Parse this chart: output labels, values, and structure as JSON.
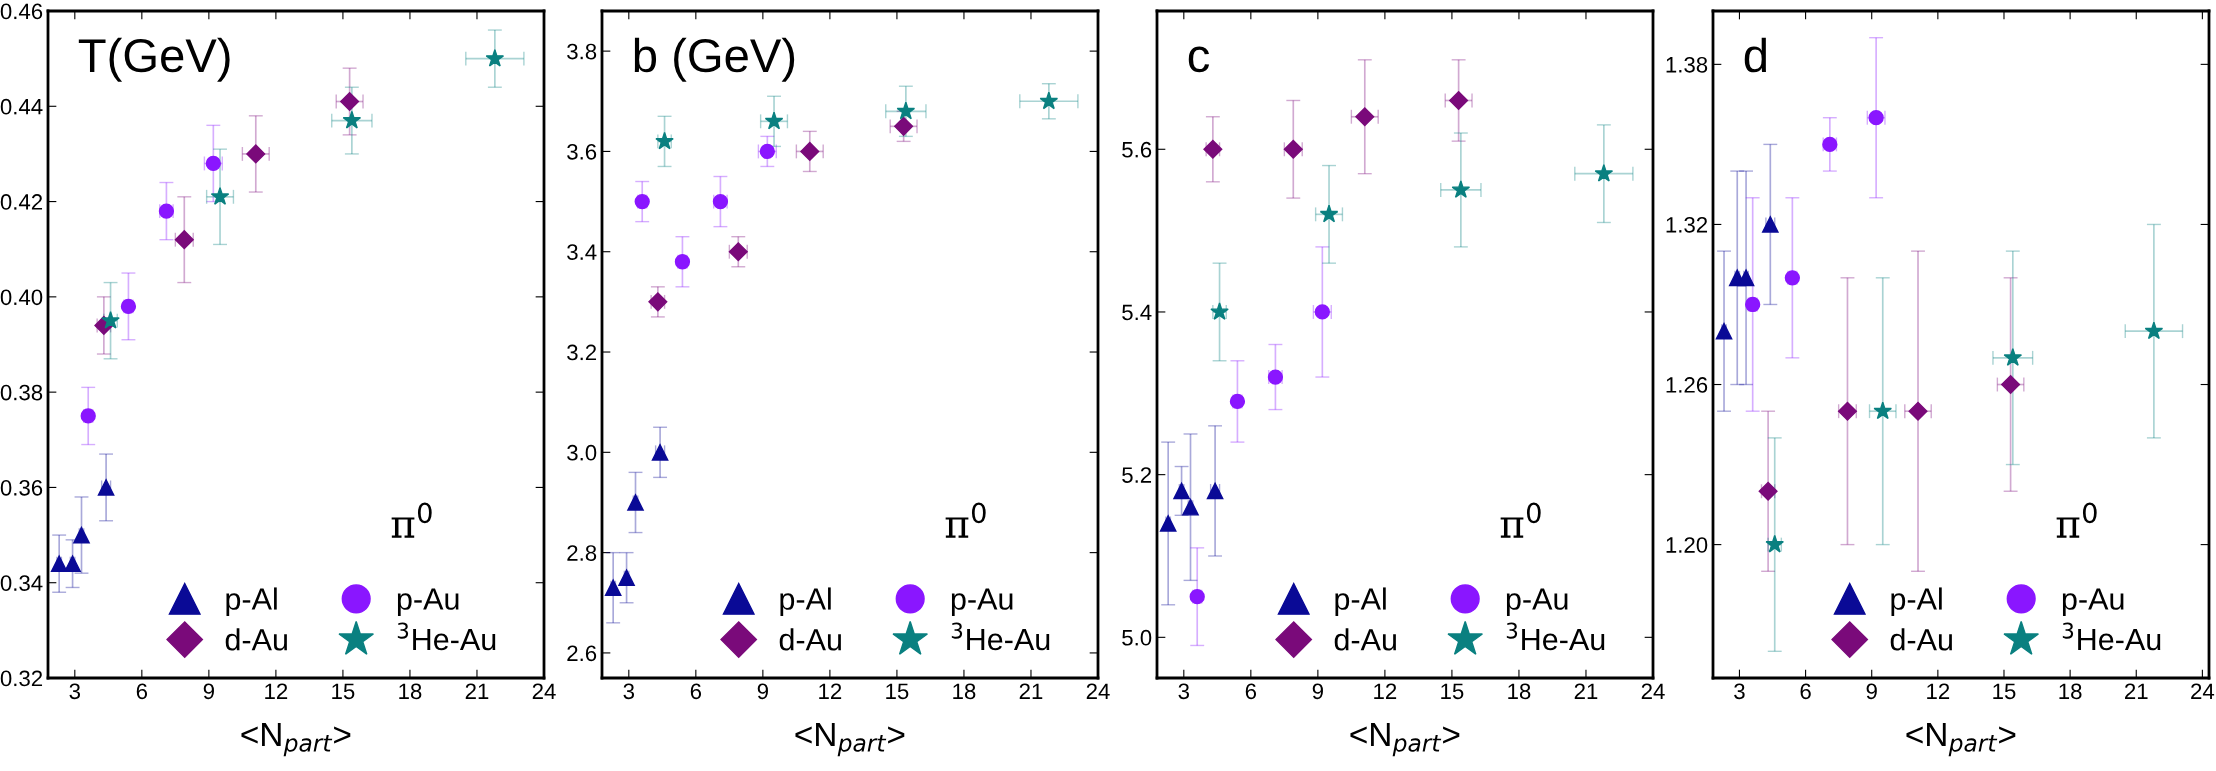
{
  "chart_data": [
    {
      "type": "scatter",
      "title": "T(GeV)",
      "xlabel": "<N$_{part}$>",
      "annotations": [
        "π$^{0}$"
      ],
      "legend": "bottom",
      "grid": false,
      "xlim": [
        1.8,
        24
      ],
      "xticks": [
        3,
        6,
        9,
        12,
        15,
        18,
        21,
        24
      ],
      "ylim": [
        0.32,
        0.46
      ],
      "yticks": [
        {
          "value": 0.32,
          "label": "0.32"
        },
        {
          "value": 0.34,
          "label": "0.34"
        },
        {
          "value": 0.36,
          "label": "0.36"
        },
        {
          "value": 0.38,
          "label": "0.38"
        },
        {
          "value": 0.4,
          "label": "0.40"
        },
        {
          "value": 0.42,
          "label": "0.42"
        },
        {
          "value": 0.44,
          "label": "0.44"
        },
        {
          "value": 0.46,
          "label": "0.46"
        }
      ],
      "series": [
        {
          "name": "p-Al",
          "color": "#0a0a96",
          "marker": "triangle",
          "x": [
            2.3,
            2.9,
            3.3,
            4.4
          ],
          "values": [
            0.344,
            0.344,
            0.35,
            0.36
          ],
          "errors": [
            0.006,
            0.005,
            0.008,
            0.007
          ],
          "xerrors": [
            0.1,
            0.1,
            0.1,
            0.2
          ]
        },
        {
          "name": "p-Au",
          "color": "#8a16ff",
          "marker": "circle",
          "x": [
            3.6,
            5.4,
            7.1,
            9.2
          ],
          "values": [
            0.375,
            0.398,
            0.418,
            0.428
          ],
          "errors": [
            0.006,
            0.007,
            0.006,
            0.008
          ],
          "xerrors": [
            0.2,
            0.2,
            0.3,
            0.4
          ]
        },
        {
          "name": "d-Au",
          "color": "#7a0a7a",
          "marker": "diamond",
          "x": [
            4.3,
            7.9,
            11.1,
            15.3
          ],
          "values": [
            0.394,
            0.412,
            0.43,
            0.441
          ],
          "errors": [
            0.006,
            0.009,
            0.008,
            0.007
          ],
          "xerrors": [
            0.3,
            0.4,
            0.6,
            0.6
          ]
        },
        {
          "name": "$^{3}$He-Au",
          "color": "#0a8080",
          "marker": "star",
          "x": [
            4.6,
            9.5,
            15.4,
            21.8
          ],
          "values": [
            0.395,
            0.421,
            0.437,
            0.45
          ],
          "errors": [
            0.008,
            0.01,
            0.007,
            0.006
          ],
          "xerrors": [
            0.3,
            0.6,
            0.9,
            1.3
          ]
        }
      ]
    },
    {
      "type": "scatter",
      "title": "b (GeV)",
      "xlabel": "<N$_{part}$>",
      "annotations": [
        "π$^{0}$"
      ],
      "legend": "bottom",
      "grid": false,
      "xlim": [
        1.8,
        24
      ],
      "xticks": [
        3,
        6,
        9,
        12,
        15,
        18,
        21,
        24
      ],
      "ylim": [
        2.55,
        3.88
      ],
      "yticks": [
        {
          "value": 2.6,
          "label": "2.6"
        },
        {
          "value": 2.8,
          "label": "2.8"
        },
        {
          "value": 3.0,
          "label": "3.0"
        },
        {
          "value": 3.2,
          "label": "3.2"
        },
        {
          "value": 3.4,
          "label": "3.4"
        },
        {
          "value": 3.6,
          "label": "3.6"
        },
        {
          "value": 3.8,
          "label": "3.8"
        }
      ],
      "series": [
        {
          "name": "p-Al",
          "color": "#0a0a96",
          "marker": "triangle",
          "x": [
            2.3,
            2.9,
            3.3,
            4.4
          ],
          "values": [
            2.73,
            2.75,
            2.9,
            3.0
          ],
          "errors": [
            0.07,
            0.05,
            0.06,
            0.05
          ],
          "xerrors": [
            0.1,
            0.1,
            0.1,
            0.2
          ]
        },
        {
          "name": "p-Au",
          "color": "#8a16ff",
          "marker": "circle",
          "x": [
            3.6,
            5.4,
            7.1,
            9.2
          ],
          "values": [
            3.5,
            3.38,
            3.5,
            3.6
          ],
          "errors": [
            0.04,
            0.05,
            0.05,
            0.03
          ],
          "xerrors": [
            0.2,
            0.2,
            0.3,
            0.4
          ]
        },
        {
          "name": "d-Au",
          "color": "#7a0a7a",
          "marker": "diamond",
          "x": [
            4.3,
            7.9,
            11.1,
            15.3
          ],
          "values": [
            3.3,
            3.4,
            3.6,
            3.65
          ],
          "errors": [
            0.03,
            0.03,
            0.04,
            0.03
          ],
          "xerrors": [
            0.3,
            0.4,
            0.6,
            0.6
          ]
        },
        {
          "name": "$^{3}$He-Au",
          "color": "#0a8080",
          "marker": "star",
          "x": [
            4.6,
            9.5,
            15.4,
            21.8
          ],
          "values": [
            3.62,
            3.66,
            3.68,
            3.7
          ],
          "errors": [
            0.05,
            0.05,
            0.05,
            0.035
          ],
          "xerrors": [
            0.3,
            0.6,
            0.9,
            1.3
          ]
        }
      ]
    },
    {
      "type": "scatter",
      "title": "c",
      "xlabel": "<N$_{part}$>",
      "annotations": [
        "π$^{0}$"
      ],
      "legend": "bottom",
      "grid": false,
      "xlim": [
        1.8,
        24
      ],
      "xticks": [
        3,
        6,
        9,
        12,
        15,
        18,
        21,
        24
      ],
      "ylim": [
        4.95,
        5.77
      ],
      "yticks": [
        {
          "value": 5.0,
          "label": "5.0"
        },
        {
          "value": 5.2,
          "label": "5.2"
        },
        {
          "value": 5.4,
          "label": "5.4"
        },
        {
          "value": 5.6,
          "label": "5.6"
        }
      ],
      "series": [
        {
          "name": "p-Al",
          "color": "#0a0a96",
          "marker": "triangle",
          "x": [
            2.3,
            2.9,
            3.3,
            4.4
          ],
          "values": [
            5.14,
            5.18,
            5.16,
            5.18
          ],
          "errors": [
            0.1,
            0.03,
            0.09,
            0.08
          ],
          "xerrors": [
            0.1,
            0.1,
            0.1,
            0.2
          ]
        },
        {
          "name": "p-Au",
          "color": "#8a16ff",
          "marker": "circle",
          "x": [
            3.6,
            5.4,
            7.1,
            9.2
          ],
          "values": [
            5.05,
            5.29,
            5.32,
            5.4
          ],
          "errors": [
            0.06,
            0.05,
            0.04,
            0.08
          ],
          "xerrors": [
            0.2,
            0.2,
            0.3,
            0.4
          ]
        },
        {
          "name": "d-Au",
          "color": "#7a0a7a",
          "marker": "diamond",
          "x": [
            4.3,
            7.9,
            11.1,
            15.3
          ],
          "values": [
            5.6,
            5.6,
            5.64,
            5.66
          ],
          "errors": [
            0.04,
            0.06,
            0.07,
            0.05
          ],
          "xerrors": [
            0.3,
            0.4,
            0.6,
            0.6
          ]
        },
        {
          "name": "$^{3}$He-Au",
          "color": "#0a8080",
          "marker": "star",
          "x": [
            4.6,
            9.5,
            15.4,
            21.8
          ],
          "values": [
            5.4,
            5.52,
            5.55,
            5.57
          ],
          "errors": [
            0.06,
            0.06,
            0.07,
            0.06
          ],
          "xerrors": [
            0.3,
            0.6,
            0.9,
            1.3
          ]
        }
      ]
    },
    {
      "type": "scatter",
      "title": "d",
      "xlabel": "<N$_{part}$>",
      "annotations": [
        "π$^{0}$"
      ],
      "legend": "bottom",
      "grid": false,
      "xlim": [
        1.8,
        24.3
      ],
      "xticks": [
        3,
        6,
        9,
        12,
        15,
        18,
        21,
        24
      ],
      "ylim": [
        1.15,
        1.4
      ],
      "yticks": [
        {
          "value": 1.2,
          "label": "1.20"
        },
        {
          "value": 1.26,
          "label": "1.26"
        },
        {
          "value": 1.32,
          "label": "1.32"
        },
        {
          "value": 1.38,
          "label": "1.38"
        }
      ],
      "series": [
        {
          "name": "p-Al",
          "color": "#0a0a96",
          "marker": "triangle",
          "x": [
            2.3,
            2.9,
            3.3,
            4.4
          ],
          "values": [
            1.28,
            1.3,
            1.3,
            1.32
          ],
          "errors": [
            0.03,
            0.04,
            0.04,
            0.03
          ],
          "xerrors": [
            0.1,
            0.1,
            0.1,
            0.2
          ]
        },
        {
          "name": "p-Au",
          "color": "#8a16ff",
          "marker": "circle",
          "x": [
            3.6,
            5.4,
            7.1,
            9.2
          ],
          "values": [
            1.29,
            1.3,
            1.35,
            1.36
          ],
          "errors": [
            0.04,
            0.03,
            0.01,
            0.03
          ],
          "xerrors": [
            0.2,
            0.2,
            0.3,
            0.4
          ]
        },
        {
          "name": "d-Au",
          "color": "#7a0a7a",
          "marker": "diamond",
          "x": [
            4.3,
            7.9,
            11.1,
            15.3
          ],
          "values": [
            1.22,
            1.25,
            1.25,
            1.26
          ],
          "errors": [
            0.03,
            0.05,
            0.06,
            0.04
          ],
          "xerrors": [
            0.3,
            0.4,
            0.6,
            0.6
          ]
        },
        {
          "name": "$^{3}$He-Au",
          "color": "#0a8080",
          "marker": "star",
          "x": [
            4.6,
            9.5,
            15.4,
            21.8
          ],
          "values": [
            1.2,
            1.25,
            1.27,
            1.28
          ],
          "errors": [
            0.04,
            0.05,
            0.04,
            0.04
          ],
          "xerrors": [
            0.3,
            0.6,
            0.9,
            1.3
          ]
        }
      ]
    }
  ]
}
